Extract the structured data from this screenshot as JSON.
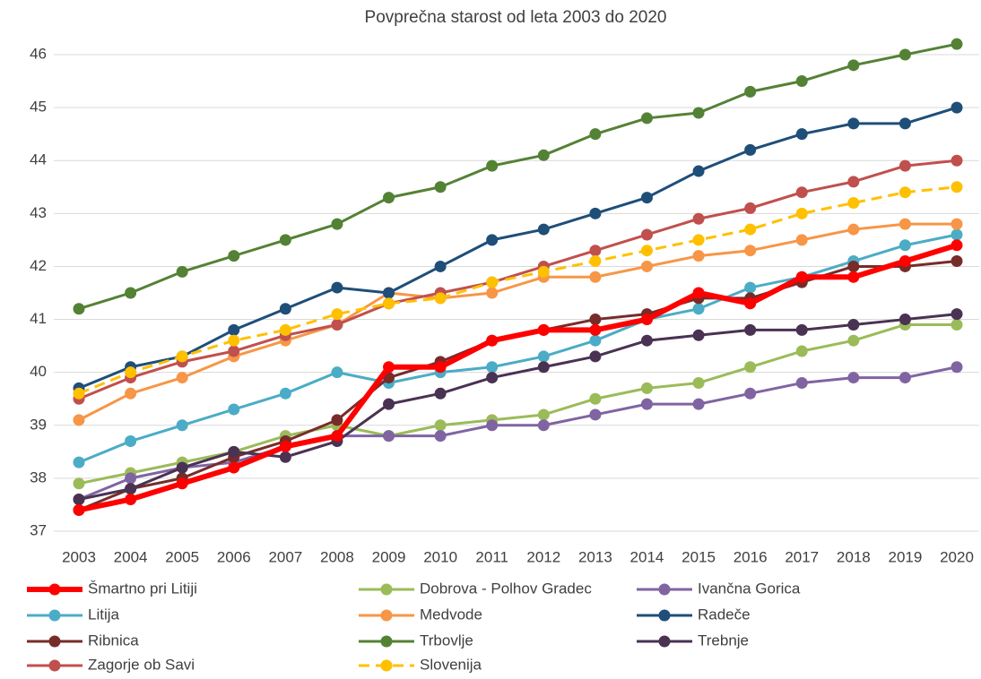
{
  "chart_data": {
    "type": "line",
    "title": "Povprečna starost od leta 2003 do 2020",
    "categories": [
      "2003",
      "2004",
      "2005",
      "2006",
      "2007",
      "2008",
      "2009",
      "2010",
      "2011",
      "2012",
      "2013",
      "2014",
      "2015",
      "2016",
      "2017",
      "2018",
      "2019",
      "2020"
    ],
    "ylim": [
      37,
      46
    ],
    "yticks": [
      37,
      38,
      39,
      40,
      41,
      42,
      43,
      44,
      45,
      46
    ],
    "grid": true,
    "legend": "bottom",
    "series": [
      {
        "name": "Šmartno pri Litiji",
        "color": "#ff0000",
        "width": 6,
        "values": [
          37.4,
          37.6,
          37.9,
          38.2,
          38.6,
          38.8,
          40.1,
          40.1,
          40.6,
          40.8,
          40.8,
          41.0,
          41.5,
          41.3,
          41.8,
          41.8,
          42.1,
          42.4
        ]
      },
      {
        "name": "Dobrova - Polhov Gradec",
        "color": "#9bbb59",
        "values": [
          37.9,
          38.1,
          38.3,
          38.5,
          38.8,
          39.0,
          38.8,
          39.0,
          39.1,
          39.2,
          39.5,
          39.7,
          39.8,
          40.1,
          40.4,
          40.6,
          40.9,
          40.9
        ]
      },
      {
        "name": "Ivančna Gorica",
        "color": "#8064a2",
        "values": [
          37.6,
          38.0,
          38.2,
          38.3,
          38.6,
          38.8,
          38.8,
          38.8,
          39.0,
          39.0,
          39.2,
          39.4,
          39.4,
          39.6,
          39.8,
          39.9,
          39.9,
          40.1
        ]
      },
      {
        "name": "Litija",
        "color": "#4bacc6",
        "values": [
          38.3,
          38.7,
          39.0,
          39.3,
          39.6,
          40.0,
          39.8,
          40.0,
          40.1,
          40.3,
          40.6,
          41.0,
          41.2,
          41.6,
          41.8,
          42.1,
          42.4,
          42.6
        ]
      },
      {
        "name": "Medvode",
        "color": "#f79646",
        "values": [
          39.1,
          39.6,
          39.9,
          40.3,
          40.6,
          40.9,
          41.5,
          41.4,
          41.5,
          41.8,
          41.8,
          42.0,
          42.2,
          42.3,
          42.5,
          42.7,
          42.8,
          42.8
        ]
      },
      {
        "name": "Radeče",
        "color": "#1f4e79",
        "values": [
          39.7,
          40.1,
          40.3,
          40.8,
          41.2,
          41.6,
          41.5,
          42.0,
          42.5,
          42.7,
          43.0,
          43.3,
          43.8,
          44.2,
          44.5,
          44.7,
          44.7,
          45.0
        ]
      },
      {
        "name": "Ribnica",
        "color": "#772c2a",
        "values": [
          37.4,
          37.8,
          38.0,
          38.4,
          38.7,
          39.1,
          39.9,
          40.2,
          40.6,
          40.8,
          41.0,
          41.1,
          41.4,
          41.4,
          41.7,
          42.0,
          42.0,
          42.1
        ]
      },
      {
        "name": "Trbovlje",
        "color": "#548235",
        "values": [
          41.2,
          41.5,
          41.9,
          42.2,
          42.5,
          42.8,
          43.3,
          43.5,
          43.9,
          44.1,
          44.5,
          44.8,
          44.9,
          45.3,
          45.5,
          45.8,
          46.0,
          46.2
        ]
      },
      {
        "name": "Trebnje",
        "color": "#4a3253",
        "values": [
          37.6,
          37.8,
          38.2,
          38.5,
          38.4,
          38.7,
          39.4,
          39.6,
          39.9,
          40.1,
          40.3,
          40.6,
          40.7,
          40.8,
          40.8,
          40.9,
          41.0,
          41.1
        ]
      },
      {
        "name": "Zagorje ob Savi",
        "color": "#c0504d",
        "values": [
          39.5,
          39.9,
          40.2,
          40.4,
          40.7,
          40.9,
          41.3,
          41.5,
          41.7,
          42.0,
          42.3,
          42.6,
          42.9,
          43.1,
          43.4,
          43.6,
          43.9,
          44.0
        ]
      },
      {
        "name": "Slovenija",
        "color": "#ffc000",
        "dashed": true,
        "values": [
          39.6,
          40.0,
          40.3,
          40.6,
          40.8,
          41.1,
          41.3,
          41.4,
          41.7,
          41.9,
          42.1,
          42.3,
          42.5,
          42.7,
          43.0,
          43.2,
          43.4,
          43.5
        ]
      }
    ]
  }
}
